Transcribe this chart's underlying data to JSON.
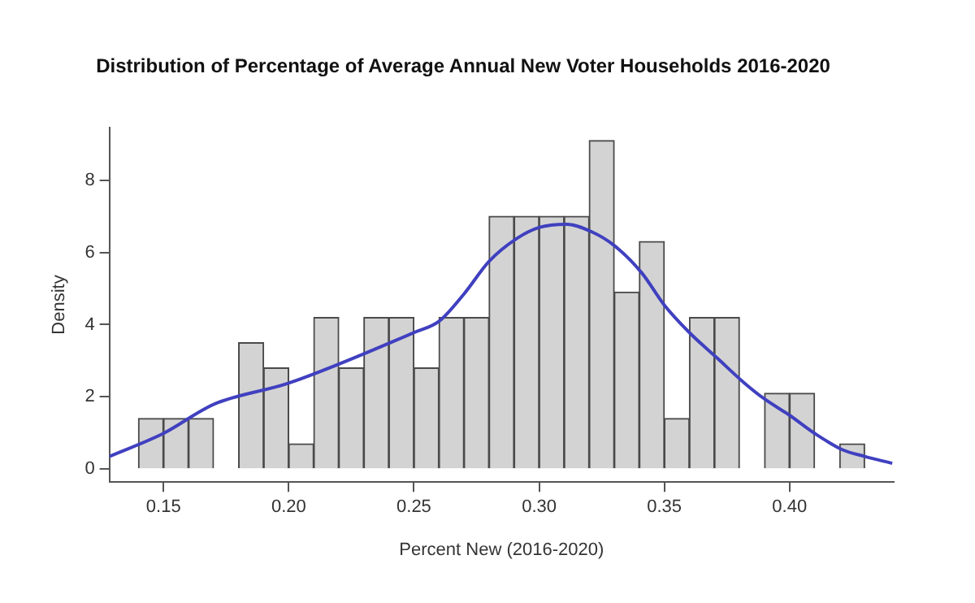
{
  "chart_data": {
    "type": "histogram",
    "title": "Distribution of Percentage of Average Annual New Voter Households 2016-2020",
    "xlabel": "Percent New (2016-2020)",
    "ylabel": "Density",
    "bins": [
      0.14,
      0.15,
      0.16,
      0.17,
      0.18,
      0.19,
      0.2,
      0.21,
      0.22,
      0.23,
      0.24,
      0.25,
      0.26,
      0.27,
      0.28,
      0.29,
      0.3,
      0.31,
      0.32,
      0.33,
      0.34,
      0.35,
      0.36,
      0.37,
      0.38,
      0.39,
      0.4,
      0.41,
      0.42,
      0.43
    ],
    "series": [
      {
        "color": "#d3d3d3",
        "values": [
          1.4,
          1.4,
          1.4,
          0,
          3.5,
          2.8,
          0.7,
          4.2,
          2.8,
          4.2,
          4.2,
          2.8,
          4.2,
          4.2,
          7.0,
          7.0,
          7.0,
          7.0,
          9.1,
          4.9,
          6.3,
          1.4,
          4.2,
          4.2,
          0,
          2.1,
          2.1,
          0,
          0.7
        ]
      },
      {
        "type": "line",
        "color": "#4040c0",
        "marker": "none",
        "x": [
          0.1284,
          0.15,
          0.17,
          0.2,
          0.25,
          0.26,
          0.27,
          0.28,
          0.291,
          0.3,
          0.311,
          0.321,
          0.33,
          0.341,
          0.35,
          0.36,
          0.371,
          0.382,
          0.39,
          0.4,
          0.41,
          0.421,
          0.43,
          0.441
        ],
        "values": [
          0.35,
          0.99,
          1.79,
          2.38,
          3.78,
          4.09,
          4.85,
          5.75,
          6.38,
          6.69,
          6.78,
          6.57,
          6.19,
          5.43,
          4.54,
          3.78,
          3.08,
          2.38,
          1.94,
          1.49,
          0.99,
          0.54,
          0.35,
          0.16
        ]
      }
    ],
    "xlim": [
      0.1284,
      0.4416
    ],
    "ylim": [
      -0.36,
      9.46
    ],
    "xticks": [
      0.15,
      {
        "value": 0.2,
        "label": "0.20"
      },
      0.25,
      {
        "value": 0.3,
        "label": "0.30"
      },
      0.35,
      {
        "value": 0.4,
        "label": "0.40"
      }
    ],
    "yticks": [
      0,
      2,
      4,
      6,
      8
    ],
    "grid": false,
    "legend": false
  }
}
